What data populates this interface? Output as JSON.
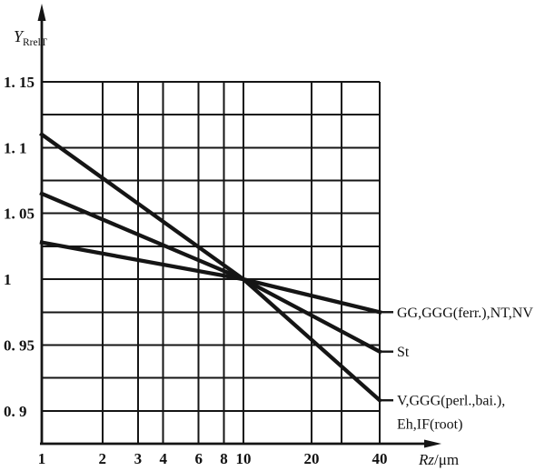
{
  "chart_data": {
    "type": "line",
    "title": "",
    "xlabel": {
      "main": "Rz",
      "unit": "/μm"
    },
    "ylabel": {
      "main": "Y",
      "sub": "RrelT"
    },
    "x_scale": "log",
    "xlim": [
      1,
      40
    ],
    "ylim": [
      0.875,
      1.15
    ],
    "grid": true,
    "y_grid_step": 0.025,
    "x_gridlines": [
      1,
      2,
      3,
      4,
      6,
      8,
      10,
      20,
      30,
      40
    ],
    "x_ticks": [
      {
        "value": 1,
        "label": "1"
      },
      {
        "value": 2,
        "label": "2"
      },
      {
        "value": 3,
        "label": "3"
      },
      {
        "value": 4,
        "label": "4"
      },
      {
        "value": 6,
        "label": "6"
      },
      {
        "value": 8,
        "label": "8"
      },
      {
        "value": 10,
        "label": "10"
      },
      {
        "value": 20,
        "label": "20"
      },
      {
        "value": 40,
        "label": "40"
      }
    ],
    "y_ticks": [
      {
        "value": 1.15,
        "label": "1. 15"
      },
      {
        "value": 1.1,
        "label": "1. 1"
      },
      {
        "value": 1.05,
        "label": "1. 05"
      },
      {
        "value": 1.0,
        "label": "1"
      },
      {
        "value": 0.95,
        "label": "0. 95"
      },
      {
        "value": 0.9,
        "label": "0. 9"
      }
    ],
    "convergence_point": {
      "x": 10,
      "y": 1.0
    },
    "series": [
      {
        "name": "GG,GGG(ferr.),NT,NV",
        "label_lines": [
          "GG,GGG(ferr.),NT,NV"
        ],
        "points": [
          [
            1,
            1.028
          ],
          [
            10,
            1.0
          ],
          [
            40,
            0.975
          ]
        ]
      },
      {
        "name": "St",
        "label_lines": [
          "St"
        ],
        "points": [
          [
            1,
            1.065
          ],
          [
            10,
            1.0
          ],
          [
            40,
            0.945
          ]
        ]
      },
      {
        "name": "V,GGG(perl.,bai.),Eh,IF(root)",
        "label_lines": [
          "V,GGG(perl.,bai.),",
          "Eh,IF(root)"
        ],
        "points": [
          [
            1,
            1.11
          ],
          [
            10,
            1.0
          ],
          [
            40,
            0.908
          ]
        ]
      }
    ],
    "legend_position": "right-of-curve-ends",
    "ink_color": "#151515",
    "background_color": "#ffffff"
  }
}
